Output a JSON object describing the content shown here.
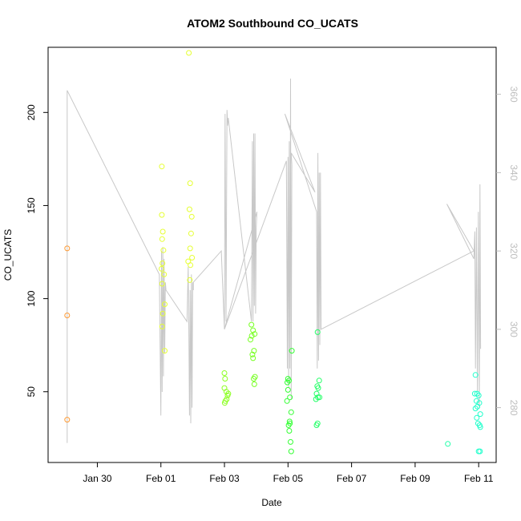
{
  "chart_data": {
    "type": "scatter",
    "title": "ATOM2 Southbound CO_UCATS",
    "xlabel": "Date",
    "ylabel": "CO_UCATS",
    "x_ticks": [
      {
        "label": "Jan 30",
        "day": 30
      },
      {
        "label": "Feb 01",
        "day": 32
      },
      {
        "label": "Feb 03",
        "day": 34
      },
      {
        "label": "Feb 05",
        "day": 36
      },
      {
        "label": "Feb 07",
        "day": 38
      },
      {
        "label": "Feb 09",
        "day": 40
      },
      {
        "label": "Feb 11",
        "day": 42
      }
    ],
    "xlim_day": [
      28.45,
      42.55
    ],
    "y_ticks": [
      50,
      100,
      150,
      200
    ],
    "ylim": [
      12,
      235
    ],
    "y2_ticks": [
      280,
      300,
      320,
      340,
      360
    ],
    "y2lim": [
      266,
      372
    ],
    "trace_color": "#c8c8c8",
    "right_axis_color": "#bdbdbd",
    "points": [
      {
        "day": 29.05,
        "y": 127,
        "color": "#ff9a33"
      },
      {
        "day": 29.05,
        "y": 91,
        "color": "#ff9a33"
      },
      {
        "day": 29.05,
        "y": 35,
        "color": "#ff9a33"
      },
      {
        "day": 32.03,
        "y": 171,
        "color": "#e6ff33"
      },
      {
        "day": 32.03,
        "y": 145,
        "color": "#e6ff33"
      },
      {
        "day": 32.06,
        "y": 136,
        "color": "#e6ff33"
      },
      {
        "day": 32.04,
        "y": 132,
        "color": "#e6ff33"
      },
      {
        "day": 32.08,
        "y": 126,
        "color": "#e6ff33"
      },
      {
        "day": 32.05,
        "y": 119,
        "color": "#e6ff33"
      },
      {
        "day": 32.02,
        "y": 116,
        "color": "#e6ff33"
      },
      {
        "day": 32.1,
        "y": 113,
        "color": "#e6ff33"
      },
      {
        "day": 32.04,
        "y": 108,
        "color": "#e6ff33"
      },
      {
        "day": 32.12,
        "y": 97,
        "color": "#e6ff33"
      },
      {
        "day": 32.06,
        "y": 92,
        "color": "#e6ff33"
      },
      {
        "day": 32.04,
        "y": 85,
        "color": "#e6ff33"
      },
      {
        "day": 32.12,
        "y": 72,
        "color": "#e6ff33"
      },
      {
        "day": 32.88,
        "y": 232,
        "color": "#e6ff33"
      },
      {
        "day": 32.92,
        "y": 162,
        "color": "#e6ff33"
      },
      {
        "day": 32.9,
        "y": 148,
        "color": "#e6ff33"
      },
      {
        "day": 32.97,
        "y": 144,
        "color": "#e6ff33"
      },
      {
        "day": 32.95,
        "y": 135,
        "color": "#e6ff33"
      },
      {
        "day": 32.92,
        "y": 127,
        "color": "#e6ff33"
      },
      {
        "day": 32.98,
        "y": 122,
        "color": "#e6ff33"
      },
      {
        "day": 32.86,
        "y": 120,
        "color": "#e6ff33"
      },
      {
        "day": 32.93,
        "y": 118,
        "color": "#e6ff33"
      },
      {
        "day": 32.91,
        "y": 110,
        "color": "#e6ff33"
      },
      {
        "day": 34.0,
        "y": 60,
        "color": "#8cff22"
      },
      {
        "day": 34.02,
        "y": 57,
        "color": "#8cff22"
      },
      {
        "day": 34.0,
        "y": 52,
        "color": "#8cff22"
      },
      {
        "day": 34.06,
        "y": 50,
        "color": "#8cff22"
      },
      {
        "day": 34.12,
        "y": 49,
        "color": "#8cff22"
      },
      {
        "day": 34.1,
        "y": 48,
        "color": "#8cff22"
      },
      {
        "day": 34.07,
        "y": 46,
        "color": "#8cff22"
      },
      {
        "day": 34.03,
        "y": 45,
        "color": "#8cff22"
      },
      {
        "day": 34.01,
        "y": 44,
        "color": "#8cff22"
      },
      {
        "day": 34.85,
        "y": 86,
        "color": "#77ff22"
      },
      {
        "day": 34.9,
        "y": 83,
        "color": "#77ff22"
      },
      {
        "day": 34.86,
        "y": 80,
        "color": "#77ff22"
      },
      {
        "day": 34.95,
        "y": 81,
        "color": "#77ff22"
      },
      {
        "day": 34.82,
        "y": 78,
        "color": "#77ff22"
      },
      {
        "day": 34.93,
        "y": 72,
        "color": "#77ff22"
      },
      {
        "day": 34.88,
        "y": 70,
        "color": "#77ff22"
      },
      {
        "day": 34.9,
        "y": 68,
        "color": "#77ff22"
      },
      {
        "day": 34.96,
        "y": 58,
        "color": "#77ff22"
      },
      {
        "day": 34.92,
        "y": 57,
        "color": "#77ff22"
      },
      {
        "day": 34.94,
        "y": 54,
        "color": "#77ff22"
      },
      {
        "day": 36.0,
        "y": 57,
        "color": "#33ff33"
      },
      {
        "day": 35.98,
        "y": 55,
        "color": "#33ff33"
      },
      {
        "day": 36.03,
        "y": 56,
        "color": "#33ff33"
      },
      {
        "day": 36.0,
        "y": 51,
        "color": "#33ff33"
      },
      {
        "day": 36.06,
        "y": 47,
        "color": "#33ff33"
      },
      {
        "day": 35.97,
        "y": 45,
        "color": "#33ff33"
      },
      {
        "day": 36.1,
        "y": 39,
        "color": "#33ff33"
      },
      {
        "day": 36.05,
        "y": 34,
        "color": "#33ff33"
      },
      {
        "day": 36.06,
        "y": 33,
        "color": "#33ff33"
      },
      {
        "day": 36.02,
        "y": 32,
        "color": "#33ff33"
      },
      {
        "day": 36.04,
        "y": 29,
        "color": "#33ff33"
      },
      {
        "day": 36.08,
        "y": 23,
        "color": "#33ff33"
      },
      {
        "day": 36.12,
        "y": 72,
        "color": "#33ff33"
      },
      {
        "day": 36.1,
        "y": 18,
        "color": "#33ff33"
      },
      {
        "day": 36.93,
        "y": 82,
        "color": "#22ff66"
      },
      {
        "day": 36.98,
        "y": 56,
        "color": "#22ff66"
      },
      {
        "day": 36.92,
        "y": 53,
        "color": "#22ff66"
      },
      {
        "day": 36.95,
        "y": 52,
        "color": "#22ff66"
      },
      {
        "day": 36.9,
        "y": 49,
        "color": "#22ff66"
      },
      {
        "day": 36.94,
        "y": 47,
        "color": "#22ff66"
      },
      {
        "day": 36.99,
        "y": 47,
        "color": "#22ff66"
      },
      {
        "day": 36.88,
        "y": 46,
        "color": "#22ff66"
      },
      {
        "day": 36.93,
        "y": 33,
        "color": "#22ff66"
      },
      {
        "day": 36.9,
        "y": 32,
        "color": "#22ff66"
      },
      {
        "day": 41.03,
        "y": 22,
        "color": "#22ffaa"
      },
      {
        "day": 41.9,
        "y": 59,
        "color": "#22ffcc"
      },
      {
        "day": 41.95,
        "y": 49,
        "color": "#22ffcc"
      },
      {
        "day": 41.88,
        "y": 49,
        "color": "#22ffcc"
      },
      {
        "day": 42.0,
        "y": 48,
        "color": "#22ffcc"
      },
      {
        "day": 41.93,
        "y": 45,
        "color": "#22ffcc"
      },
      {
        "day": 42.02,
        "y": 44,
        "color": "#22ffcc"
      },
      {
        "day": 41.96,
        "y": 42,
        "color": "#22ffcc"
      },
      {
        "day": 41.9,
        "y": 41,
        "color": "#22ffcc"
      },
      {
        "day": 42.05,
        "y": 38,
        "color": "#22ffcc"
      },
      {
        "day": 41.94,
        "y": 36,
        "color": "#22ffcc"
      },
      {
        "day": 41.98,
        "y": 33,
        "color": "#22ffcc"
      },
      {
        "day": 42.03,
        "y": 32,
        "color": "#22ffcc"
      },
      {
        "day": 42.05,
        "y": 31,
        "color": "#22ffcc"
      },
      {
        "day": 42.0,
        "y": 18,
        "color": "#22ffcc"
      },
      {
        "day": 42.04,
        "y": 18,
        "color": "#22ffcc"
      }
    ],
    "trace": [
      [
        29.05,
        271
      ],
      [
        29.05,
        361
      ],
      [
        31.95,
        314
      ],
      [
        32.0,
        278
      ],
      [
        32.02,
        320
      ],
      [
        32.04,
        284
      ],
      [
        32.06,
        321
      ],
      [
        32.08,
        288
      ],
      [
        32.1,
        318
      ],
      [
        32.12,
        294
      ],
      [
        32.14,
        312
      ],
      [
        32.16,
        310
      ],
      [
        32.82,
        302
      ],
      [
        32.86,
        316
      ],
      [
        32.88,
        300
      ],
      [
        32.9,
        278
      ],
      [
        32.92,
        310
      ],
      [
        32.94,
        276
      ],
      [
        32.96,
        314
      ],
      [
        32.98,
        280
      ],
      [
        33.0,
        312
      ],
      [
        33.02,
        310
      ],
      [
        33.02,
        312
      ],
      [
        33.9,
        320
      ],
      [
        34.0,
        300
      ],
      [
        34.02,
        355
      ],
      [
        34.05,
        302
      ],
      [
        34.08,
        356
      ],
      [
        34.1,
        352
      ],
      [
        34.12,
        354
      ],
      [
        34.85,
        302
      ],
      [
        34.88,
        348
      ],
      [
        34.9,
        302
      ],
      [
        34.92,
        350
      ],
      [
        34.94,
        306
      ],
      [
        34.96,
        350
      ],
      [
        34.98,
        304
      ],
      [
        35.0,
        326
      ],
      [
        35.02,
        330
      ],
      [
        35.02,
        330
      ],
      [
        34.0,
        300
      ],
      [
        35.95,
        343
      ],
      [
        35.98,
        290
      ],
      [
        36.0,
        344
      ],
      [
        36.02,
        285
      ],
      [
        36.04,
        348
      ],
      [
        36.06,
        290
      ],
      [
        36.08,
        364
      ],
      [
        36.1,
        282
      ],
      [
        36.12,
        342
      ],
      [
        36.12,
        342
      ],
      [
        36.1,
        345
      ],
      [
        36.85,
        335
      ],
      [
        36.85,
        335
      ],
      [
        35.9,
        355
      ],
      [
        36.9,
        330
      ],
      [
        36.92,
        290
      ],
      [
        36.94,
        345
      ],
      [
        36.96,
        292
      ],
      [
        36.98,
        340
      ],
      [
        37.0,
        296
      ],
      [
        37.02,
        340
      ],
      [
        37.04,
        300
      ],
      [
        37.04,
        300
      ],
      [
        41.85,
        320
      ],
      [
        41.0,
        332
      ],
      [
        41.85,
        318
      ],
      [
        41.88,
        325
      ],
      [
        41.9,
        290
      ],
      [
        41.93,
        326
      ],
      [
        41.96,
        284
      ],
      [
        41.99,
        330
      ],
      [
        42.02,
        280
      ],
      [
        42.04,
        337
      ],
      [
        42.06,
        295
      ]
    ]
  }
}
